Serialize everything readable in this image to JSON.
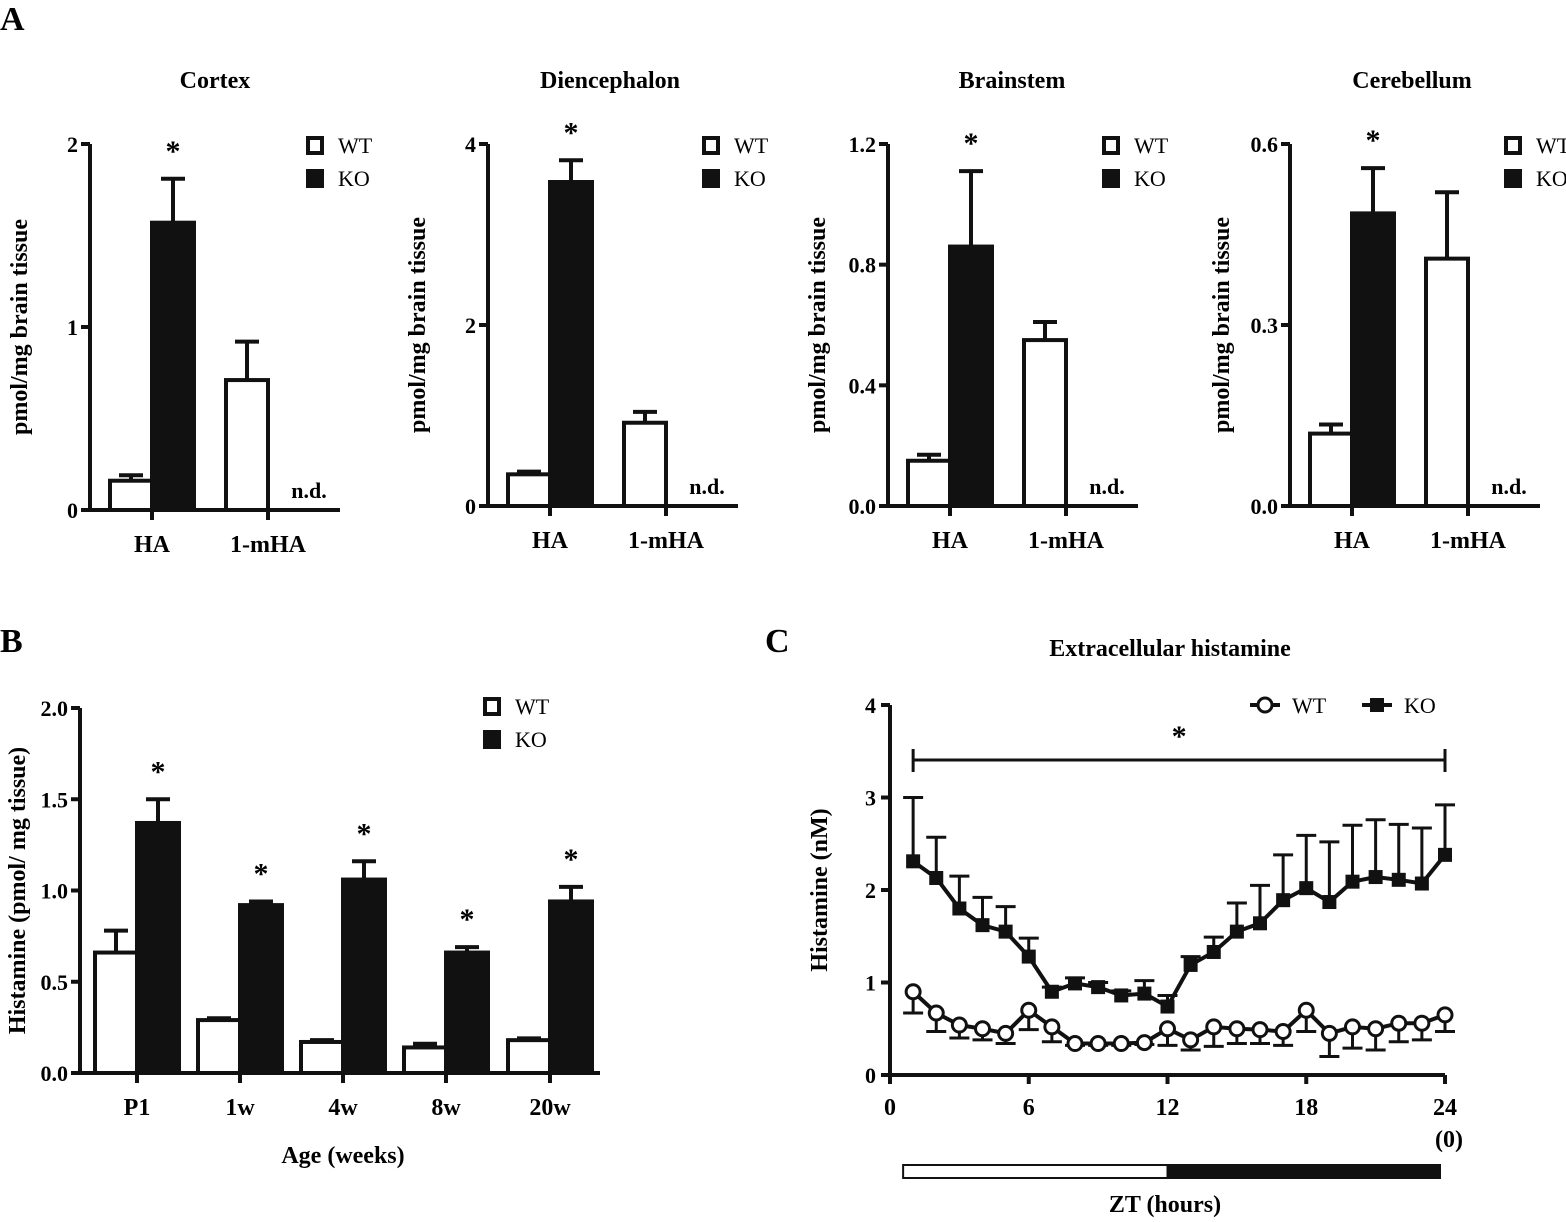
{
  "panel_letters": {
    "a": "A",
    "b": "B",
    "c": "C"
  },
  "chart_data": [
    {
      "type": "bar",
      "panel": "A",
      "title": "Cortex",
      "ylabel": "pmol/mg brain tissue",
      "ylim": [
        0,
        2
      ],
      "yticks": [
        "0",
        "1",
        "2"
      ],
      "ytick_values": [
        0,
        1,
        2
      ],
      "categories": [
        "HA",
        "1-mHA"
      ],
      "series": [
        {
          "name": "WT",
          "values": [
            0.16,
            0.71
          ],
          "errors": [
            0.03,
            0.21
          ],
          "color": "#ffffff"
        },
        {
          "name": "KO",
          "values": [
            1.57,
            null
          ],
          "errors": [
            0.24,
            null
          ],
          "color": "#111111"
        }
      ],
      "annotations": {
        "significance": "*",
        "not_detected": "n.d."
      },
      "legend": "top-right"
    },
    {
      "type": "bar",
      "panel": "A",
      "title": "Diencephalon",
      "ylabel": "pmol/mg brain tissue",
      "ylim": [
        0,
        4
      ],
      "yticks": [
        "0",
        "2",
        "4"
      ],
      "ytick_values": [
        0,
        2,
        4
      ],
      "categories": [
        "HA",
        "1-mHA"
      ],
      "series": [
        {
          "name": "WT",
          "values": [
            0.35,
            0.92
          ],
          "errors": [
            0.03,
            0.12
          ],
          "color": "#ffffff"
        },
        {
          "name": "KO",
          "values": [
            3.58,
            null
          ],
          "errors": [
            0.24,
            null
          ],
          "color": "#111111"
        }
      ],
      "annotations": {
        "significance": "*",
        "not_detected": "n.d."
      },
      "legend": "top-right"
    },
    {
      "type": "bar",
      "panel": "A",
      "title": "Brainstem",
      "ylabel": "pmol/mg brain tissue",
      "ylim": [
        0,
        1.2
      ],
      "yticks": [
        "0.0",
        "0.4",
        "0.8",
        "1.2"
      ],
      "ytick_values": [
        0,
        0.4,
        0.8,
        1.2
      ],
      "categories": [
        "HA",
        "1-mHA"
      ],
      "series": [
        {
          "name": "WT",
          "values": [
            0.15,
            0.55
          ],
          "errors": [
            0.02,
            0.06
          ],
          "color": "#ffffff"
        },
        {
          "name": "KO",
          "values": [
            0.86,
            null
          ],
          "errors": [
            0.25,
            null
          ],
          "color": "#111111"
        }
      ],
      "annotations": {
        "significance": "*",
        "not_detected": "n.d."
      },
      "legend": "top-right"
    },
    {
      "type": "bar",
      "panel": "A",
      "title": "Cerebellum",
      "ylabel": "pmol/mg brain tissue",
      "ylim": [
        0,
        0.6
      ],
      "yticks": [
        "0.0",
        "0.3",
        "0.6"
      ],
      "ytick_values": [
        0,
        0.3,
        0.6
      ],
      "categories": [
        "HA",
        "1-mHA"
      ],
      "series": [
        {
          "name": "WT",
          "values": [
            0.12,
            0.41
          ],
          "errors": [
            0.015,
            0.11
          ],
          "color": "#ffffff"
        },
        {
          "name": "KO",
          "values": [
            0.485,
            null
          ],
          "errors": [
            0.075,
            null
          ],
          "color": "#111111"
        }
      ],
      "annotations": {
        "significance": "*",
        "not_detected": "n.d."
      },
      "legend": "top-right"
    },
    {
      "type": "bar",
      "panel": "B",
      "title": "",
      "xlabel": "Age (weeks)",
      "ylabel": "Histamine (pmol/ mg tissue)",
      "ylim": [
        0,
        2.0
      ],
      "yticks": [
        "0.0",
        "0.5",
        "1.0",
        "1.5",
        "2.0"
      ],
      "ytick_values": [
        0,
        0.5,
        1.0,
        1.5,
        2.0
      ],
      "categories": [
        "P1",
        "1w",
        "4w",
        "8w",
        "20w"
      ],
      "series": [
        {
          "name": "WT",
          "values": [
            0.66,
            0.29,
            0.17,
            0.14,
            0.18
          ],
          "errors": [
            0.12,
            0.01,
            0.01,
            0.02,
            0.01
          ],
          "color": "#ffffff"
        },
        {
          "name": "KO",
          "values": [
            1.37,
            0.92,
            1.06,
            0.66,
            0.94
          ],
          "errors": [
            0.13,
            0.02,
            0.1,
            0.03,
            0.08
          ],
          "color": "#111111"
        }
      ],
      "annotations": {
        "significance": "*"
      },
      "legend": "top-right"
    },
    {
      "type": "line",
      "panel": "C",
      "title": "Extracellular histamine",
      "xlabel": "ZT (hours)",
      "ylabel": "Histamine (nM)",
      "xlim": [
        0,
        24
      ],
      "xticks": [
        "0",
        "6",
        "12",
        "18",
        "24"
      ],
      "xtick_values": [
        0,
        6,
        12,
        18,
        24
      ],
      "xtick_extra": "(0)",
      "ylim": [
        0,
        4
      ],
      "yticks": [
        "0",
        "1",
        "2",
        "3",
        "4"
      ],
      "ytick_values": [
        0,
        1,
        2,
        3,
        4
      ],
      "x": [
        1,
        2,
        3,
        4,
        5,
        6,
        7,
        8,
        9,
        10,
        11,
        12,
        13,
        14,
        15,
        16,
        17,
        18,
        19,
        20,
        21,
        22,
        23,
        24
      ],
      "series": [
        {
          "name": "WT",
          "marker": "open-circle",
          "values": [
            0.9,
            0.67,
            0.54,
            0.5,
            0.45,
            0.7,
            0.52,
            0.34,
            0.34,
            0.34,
            0.35,
            0.5,
            0.38,
            0.52,
            0.5,
            0.49,
            0.47,
            0.7,
            0.45,
            0.52,
            0.5,
            0.56,
            0.56,
            0.65
          ],
          "errors": [
            0.23,
            0.2,
            0.14,
            0.12,
            0.11,
            0.21,
            0.16,
            0.02,
            0.02,
            0.02,
            0.02,
            0.18,
            0.11,
            0.21,
            0.16,
            0.15,
            0.15,
            0.23,
            0.25,
            0.23,
            0.23,
            0.2,
            0.18,
            0.18
          ],
          "error_direction": "down"
        },
        {
          "name": "KO",
          "marker": "filled-square",
          "values": [
            2.31,
            2.13,
            1.8,
            1.62,
            1.55,
            1.28,
            0.9,
            0.99,
            0.95,
            0.86,
            0.88,
            0.74,
            1.19,
            1.33,
            1.55,
            1.64,
            1.89,
            2.02,
            1.87,
            2.09,
            2.14,
            2.11,
            2.07,
            2.38
          ],
          "errors": [
            0.69,
            0.44,
            0.35,
            0.3,
            0.27,
            0.2,
            0.05,
            0.06,
            0.05,
            0.05,
            0.14,
            0.12,
            0.09,
            0.16,
            0.31,
            0.41,
            0.49,
            0.57,
            0.65,
            0.61,
            0.62,
            0.6,
            0.6,
            0.54
          ],
          "error_direction": "up"
        }
      ],
      "annotations": {
        "significance": "*",
        "significance_range": [
          1,
          24
        ]
      },
      "light_dark_bar": {
        "light": [
          1,
          12
        ],
        "dark": [
          12,
          24
        ],
        "light_color": "#ffffff",
        "dark_color": "#111111"
      },
      "legend": "top-right"
    }
  ]
}
